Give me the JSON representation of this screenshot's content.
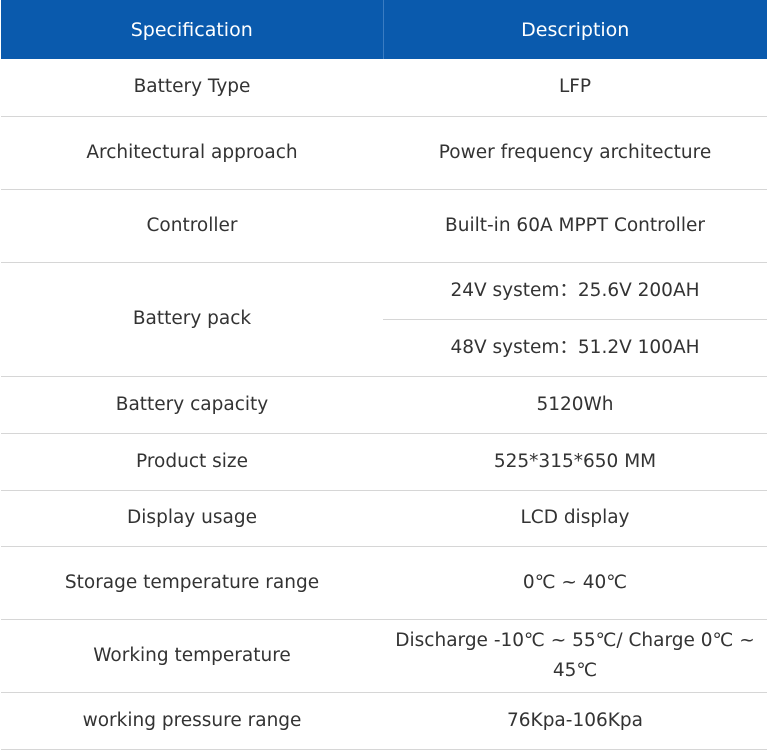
{
  "header": {
    "spec": "Specification",
    "desc": "Description"
  },
  "header_color": "#0a5aad",
  "rows": [
    {
      "spec": "Battery Type",
      "desc": "LFP"
    },
    {
      "spec": "Architectural approach",
      "desc": "Power frequency architecture"
    },
    {
      "spec": "Controller",
      "desc": "Built-in 60A MPPT Controller"
    },
    {
      "spec": "Battery pack",
      "desc": "24V system：25.6V 200AH",
      "desc2": "48V system：51.2V 100AH"
    },
    {
      "spec": "Battery capacity",
      "desc": "5120Wh"
    },
    {
      "spec": "Product size",
      "desc": "525*315*650 MM"
    },
    {
      "spec": "Display usage",
      "desc": "LCD display"
    },
    {
      "spec": "Storage temperature range",
      "desc": "0℃ ~ 40℃"
    },
    {
      "spec": "Working temperature",
      "desc": "Discharge -10℃ ~ 55℃/ Charge 0℃ ~ 45℃"
    },
    {
      "spec": "working pressure range",
      "desc": "76Kpa-106Kpa"
    }
  ]
}
